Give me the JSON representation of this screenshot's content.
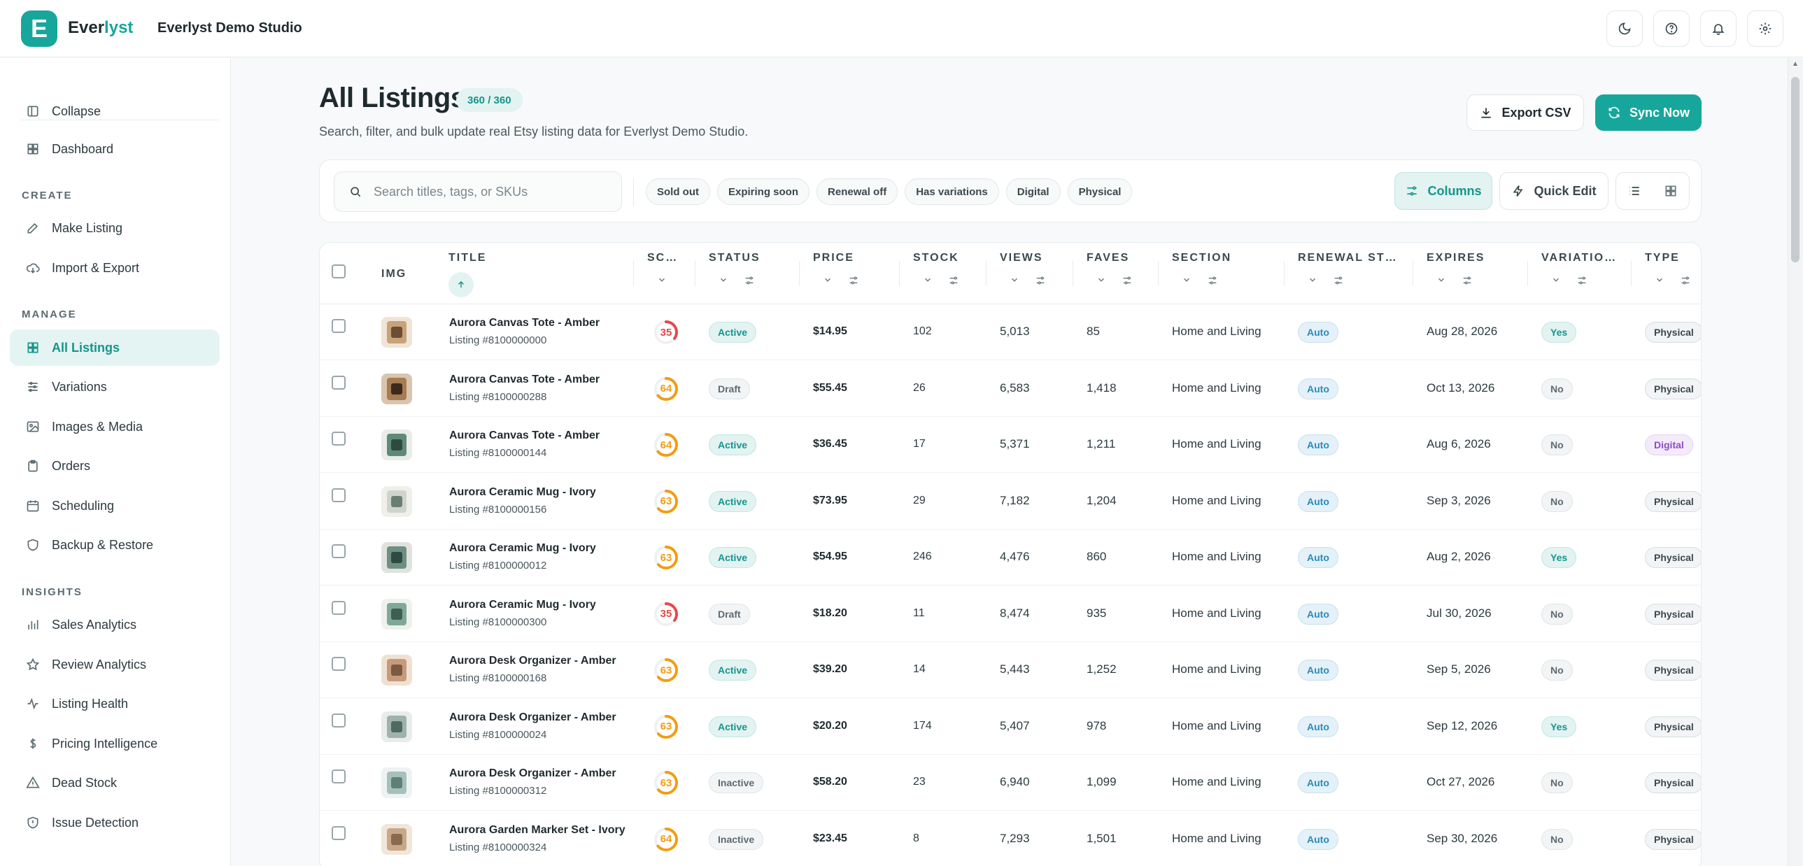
{
  "app": {
    "logo_letter": "E",
    "brand_prefix": "Ever",
    "brand_suffix": "lyst",
    "studio_name": "Everlyst Demo Studio",
    "accent_color": "#17a69b"
  },
  "top_icons": [
    "moon-icon",
    "help-icon",
    "bell-icon",
    "gear-icon"
  ],
  "sidebar": {
    "collapse_label": "Collapse",
    "dashboard_label": "Dashboard",
    "group_create": "CREATE",
    "group_manage": "MANAGE",
    "group_insights": "INSIGHTS",
    "items": {
      "make_listing": "Make Listing",
      "import_export": "Import & Export",
      "all_listings": "All Listings",
      "variations": "Variations",
      "images_media": "Images & Media",
      "orders": "Orders",
      "scheduling": "Scheduling",
      "backup_restore": "Backup & Restore",
      "sales_analytics": "Sales Analytics",
      "review_analytics": "Review Analytics",
      "listing_health": "Listing Health",
      "pricing_intelligence": "Pricing Intelligence",
      "dead_stock": "Dead Stock",
      "issue_detection": "Issue Detection"
    }
  },
  "header": {
    "title": "All Listings",
    "count_badge": "360 / 360",
    "subtitle": "Search, filter, and bulk update real Etsy listing data for Everlyst Demo Studio.",
    "export_label": "Export CSV",
    "sync_label": "Sync Now"
  },
  "filters": {
    "search_placeholder": "Search titles, tags, or SKUs",
    "chips": [
      "Sold out",
      "Expiring soon",
      "Renewal off",
      "Has variations",
      "Digital",
      "Physical"
    ],
    "columns_label": "Columns",
    "quick_edit_label": "Quick Edit"
  },
  "table": {
    "headers": {
      "img": "IMG",
      "title": "TITLE",
      "score": "SC…",
      "status": "STATUS",
      "price": "PRICE",
      "stock": "STOCK",
      "views": "VIEWS",
      "faves": "FAVES",
      "section": "SECTION",
      "renewal": "RENEWAL ST…",
      "expires": "EXPIRES",
      "variations": "VARIATIO…",
      "type": "TYPE"
    },
    "rows": [
      {
        "title": "Aurora Canvas Tote - Amber",
        "listing": "Listing #8100000000",
        "score": "35",
        "status": "Active",
        "price": "$14.95",
        "stock": "102",
        "views": "5,013",
        "faves": "85",
        "section": "Home and Living",
        "renewal": "Auto",
        "expires": "Aug 28, 2026",
        "variations": "Yes",
        "type": "Physical"
      },
      {
        "title": "Aurora Canvas Tote - Amber",
        "listing": "Listing #8100000288",
        "score": "64",
        "status": "Draft",
        "price": "$55.45",
        "stock": "26",
        "views": "6,583",
        "faves": "1,418",
        "section": "Home and Living",
        "renewal": "Auto",
        "expires": "Oct 13, 2026",
        "variations": "No",
        "type": "Physical"
      },
      {
        "title": "Aurora Canvas Tote - Amber",
        "listing": "Listing #8100000144",
        "score": "64",
        "status": "Active",
        "price": "$36.45",
        "stock": "17",
        "views": "5,371",
        "faves": "1,211",
        "section": "Home and Living",
        "renewal": "Auto",
        "expires": "Aug 6, 2026",
        "variations": "No",
        "type": "Digital"
      },
      {
        "title": "Aurora Ceramic Mug - Ivory",
        "listing": "Listing #8100000156",
        "score": "63",
        "status": "Active",
        "price": "$73.95",
        "stock": "29",
        "views": "7,182",
        "faves": "1,204",
        "section": "Home and Living",
        "renewal": "Auto",
        "expires": "Sep 3, 2026",
        "variations": "No",
        "type": "Physical"
      },
      {
        "title": "Aurora Ceramic Mug - Ivory",
        "listing": "Listing #8100000012",
        "score": "63",
        "status": "Active",
        "price": "$54.95",
        "stock": "246",
        "views": "4,476",
        "faves": "860",
        "section": "Home and Living",
        "renewal": "Auto",
        "expires": "Aug 2, 2026",
        "variations": "Yes",
        "type": "Physical"
      },
      {
        "title": "Aurora Ceramic Mug - Ivory",
        "listing": "Listing #8100000300",
        "score": "35",
        "status": "Draft",
        "price": "$18.20",
        "stock": "11",
        "views": "8,474",
        "faves": "935",
        "section": "Home and Living",
        "renewal": "Auto",
        "expires": "Jul 30, 2026",
        "variations": "No",
        "type": "Physical"
      },
      {
        "title": "Aurora Desk Organizer - Amber",
        "listing": "Listing #8100000168",
        "score": "63",
        "status": "Active",
        "price": "$39.20",
        "stock": "14",
        "views": "5,443",
        "faves": "1,252",
        "section": "Home and Living",
        "renewal": "Auto",
        "expires": "Sep 5, 2026",
        "variations": "No",
        "type": "Physical"
      },
      {
        "title": "Aurora Desk Organizer - Amber",
        "listing": "Listing #8100000024",
        "score": "63",
        "status": "Active",
        "price": "$20.20",
        "stock": "174",
        "views": "5,407",
        "faves": "978",
        "section": "Home and Living",
        "renewal": "Auto",
        "expires": "Sep 12, 2026",
        "variations": "Yes",
        "type": "Physical"
      },
      {
        "title": "Aurora Desk Organizer - Amber",
        "listing": "Listing #8100000312",
        "score": "63",
        "status": "Inactive",
        "price": "$58.20",
        "stock": "23",
        "views": "6,940",
        "faves": "1,099",
        "section": "Home and Living",
        "renewal": "Auto",
        "expires": "Oct 27, 2026",
        "variations": "No",
        "type": "Physical"
      },
      {
        "title": "Aurora Garden Marker Set - Ivory",
        "listing": "Listing #8100000324",
        "score": "64",
        "status": "Inactive",
        "price": "$23.45",
        "stock": "8",
        "views": "7,293",
        "faves": "1,501",
        "section": "Home and Living",
        "renewal": "Auto",
        "expires": "Sep 30, 2026",
        "variations": "No",
        "type": "Physical"
      }
    ]
  },
  "colors": {
    "score_low": "#e5484d",
    "score_mid": "#f29d12",
    "active": "#15958b",
    "digital": "#8f4bc4"
  }
}
